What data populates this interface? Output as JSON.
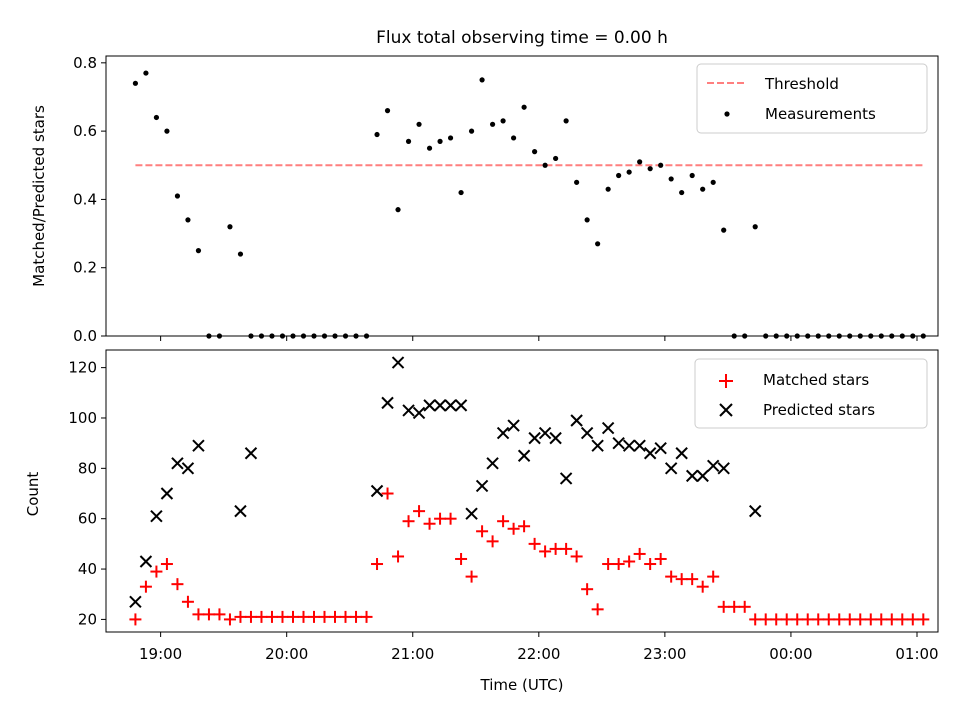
{
  "figure": {
    "title": "Flux total observing time = 0.00 h"
  },
  "chart_data": [
    {
      "type": "scatter",
      "ylabel": "Matched/Predicted stars",
      "ylim": [
        0,
        0.82
      ],
      "yticks": [
        0.0,
        0.2,
        0.4,
        0.6,
        0.8
      ],
      "ytick_labels": [
        "0.0",
        "0.2",
        "0.4",
        "0.6",
        "0.8"
      ],
      "legend_position": "upper right",
      "series": [
        {
          "name": "Threshold",
          "kind": "line",
          "color": "#ff7f7f",
          "dash": true,
          "x": [
            "18:48",
            "01:04"
          ],
          "y": [
            0.5,
            0.5
          ]
        },
        {
          "name": "Measurements",
          "kind": "points",
          "color": "#000000",
          "marker": "dot",
          "x": [
            "18:48",
            "18:53",
            "18:58",
            "19:03",
            "19:08",
            "19:13",
            "19:18",
            "19:23",
            "19:28",
            "19:33",
            "19:38",
            "19:43",
            "19:48",
            "19:53",
            "19:58",
            "20:03",
            "20:08",
            "20:13",
            "20:18",
            "20:23",
            "20:28",
            "20:33",
            "20:38",
            "20:43",
            "20:48",
            "20:53",
            "20:58",
            "21:03",
            "21:08",
            "21:13",
            "21:18",
            "21:23",
            "21:28",
            "21:33",
            "21:38",
            "21:43",
            "21:48",
            "21:53",
            "21:58",
            "22:03",
            "22:08",
            "22:13",
            "22:18",
            "22:23",
            "22:28",
            "22:33",
            "22:38",
            "22:43",
            "22:48",
            "22:53",
            "22:58",
            "23:03",
            "23:08",
            "23:13",
            "23:18",
            "23:23",
            "23:28",
            "23:33",
            "23:38",
            "23:43",
            "23:48",
            "23:53",
            "23:58",
            "00:03",
            "00:08",
            "00:13",
            "00:18",
            "00:23",
            "00:28",
            "00:33",
            "00:38",
            "00:43",
            "00:48",
            "00:53",
            "00:58",
            "01:03"
          ],
          "y": [
            0.74,
            0.77,
            0.64,
            0.6,
            0.41,
            0.34,
            0.25,
            0.0,
            0.0,
            0.32,
            0.24,
            0.0,
            0.0,
            0.0,
            0.0,
            0.0,
            0.0,
            0.0,
            0.0,
            0.0,
            0.0,
            0.0,
            0.0,
            0.59,
            0.66,
            0.37,
            0.57,
            0.62,
            0.55,
            0.57,
            0.58,
            0.42,
            0.6,
            0.75,
            0.62,
            0.63,
            0.58,
            0.67,
            0.54,
            0.5,
            0.52,
            0.63,
            0.45,
            0.34,
            0.27,
            0.43,
            0.47,
            0.48,
            0.51,
            0.49,
            0.5,
            0.46,
            0.42,
            0.47,
            0.43,
            0.45,
            0.31,
            0.0,
            0.0,
            0.32,
            0.0,
            0.0,
            0.0,
            0.0,
            0.0,
            0.0,
            0.0,
            0.0,
            0.0,
            0.0,
            0.0,
            0.0,
            0.0,
            0.0,
            0.0,
            0.0
          ]
        }
      ]
    },
    {
      "type": "scatter",
      "xlabel": "Time (UTC)",
      "ylabel": "Count",
      "ylim": [
        15,
        127
      ],
      "yticks": [
        20,
        40,
        60,
        80,
        100,
        120
      ],
      "ytick_labels": [
        "20",
        "40",
        "60",
        "80",
        "100",
        "120"
      ],
      "xtick_labels": [
        "19:00",
        "20:00",
        "21:00",
        "22:00",
        "23:00",
        "00:00",
        "01:00"
      ],
      "legend_position": "upper right",
      "series": [
        {
          "name": "Matched stars",
          "kind": "points",
          "color": "#ff0000",
          "marker": "plus",
          "x": [
            "18:48",
            "18:53",
            "18:58",
            "19:03",
            "19:08",
            "19:13",
            "19:18",
            "19:23",
            "19:28",
            "19:33",
            "19:38",
            "19:43",
            "19:48",
            "19:53",
            "19:58",
            "20:03",
            "20:08",
            "20:13",
            "20:18",
            "20:23",
            "20:28",
            "20:33",
            "20:38",
            "20:43",
            "20:48",
            "20:53",
            "20:58",
            "21:03",
            "21:08",
            "21:13",
            "21:18",
            "21:23",
            "21:28",
            "21:33",
            "21:38",
            "21:43",
            "21:48",
            "21:53",
            "21:58",
            "22:03",
            "22:08",
            "22:13",
            "22:18",
            "22:23",
            "22:28",
            "22:33",
            "22:38",
            "22:43",
            "22:48",
            "22:53",
            "22:58",
            "23:03",
            "23:08",
            "23:13",
            "23:18",
            "23:23",
            "23:28",
            "23:33",
            "23:38",
            "23:43",
            "23:48",
            "23:53",
            "23:58",
            "00:03",
            "00:08",
            "00:13",
            "00:18",
            "00:23",
            "00:28",
            "00:33",
            "00:38",
            "00:43",
            "00:48",
            "00:53",
            "00:58",
            "01:03"
          ],
          "y": [
            20,
            33,
            39,
            42,
            34,
            27,
            22,
            22,
            22,
            20,
            21,
            21,
            21,
            21,
            21,
            21,
            21,
            21,
            21,
            21,
            21,
            21,
            21,
            42,
            70,
            45,
            59,
            63,
            58,
            60,
            60,
            44,
            37,
            55,
            51,
            59,
            56,
            57,
            50,
            47,
            48,
            48,
            45,
            32,
            24,
            42,
            42,
            43,
            46,
            42,
            44,
            37,
            36,
            36,
            33,
            37,
            25,
            25,
            25,
            20,
            20,
            20,
            20,
            20,
            20,
            20,
            20,
            20,
            20,
            20,
            20,
            20,
            20,
            20,
            20,
            20
          ]
        },
        {
          "name": "Predicted stars",
          "kind": "points",
          "color": "#000000",
          "marker": "x",
          "x": [
            "18:48",
            "18:53",
            "18:58",
            "19:03",
            "19:08",
            "19:13",
            "19:18",
            "19:38",
            "19:43",
            "20:43",
            "20:48",
            "20:53",
            "20:58",
            "21:03",
            "21:08",
            "21:13",
            "21:18",
            "21:23",
            "21:28",
            "21:33",
            "21:38",
            "21:43",
            "21:48",
            "21:53",
            "21:58",
            "22:03",
            "22:08",
            "22:13",
            "22:18",
            "22:23",
            "22:28",
            "22:33",
            "22:38",
            "22:43",
            "22:48",
            "22:53",
            "22:58",
            "23:03",
            "23:08",
            "23:13",
            "23:18",
            "23:23",
            "23:28",
            "23:43"
          ],
          "y": [
            27,
            43,
            61,
            70,
            82,
            80,
            89,
            63,
            86,
            71,
            106,
            122,
            103,
            102,
            105,
            105,
            105,
            105,
            62,
            73,
            82,
            94,
            97,
            85,
            92,
            94,
            92,
            76,
            99,
            94,
            89,
            96,
            90,
            89,
            89,
            86,
            88,
            80,
            86,
            77,
            77,
            81,
            80,
            63
          ]
        }
      ]
    }
  ]
}
